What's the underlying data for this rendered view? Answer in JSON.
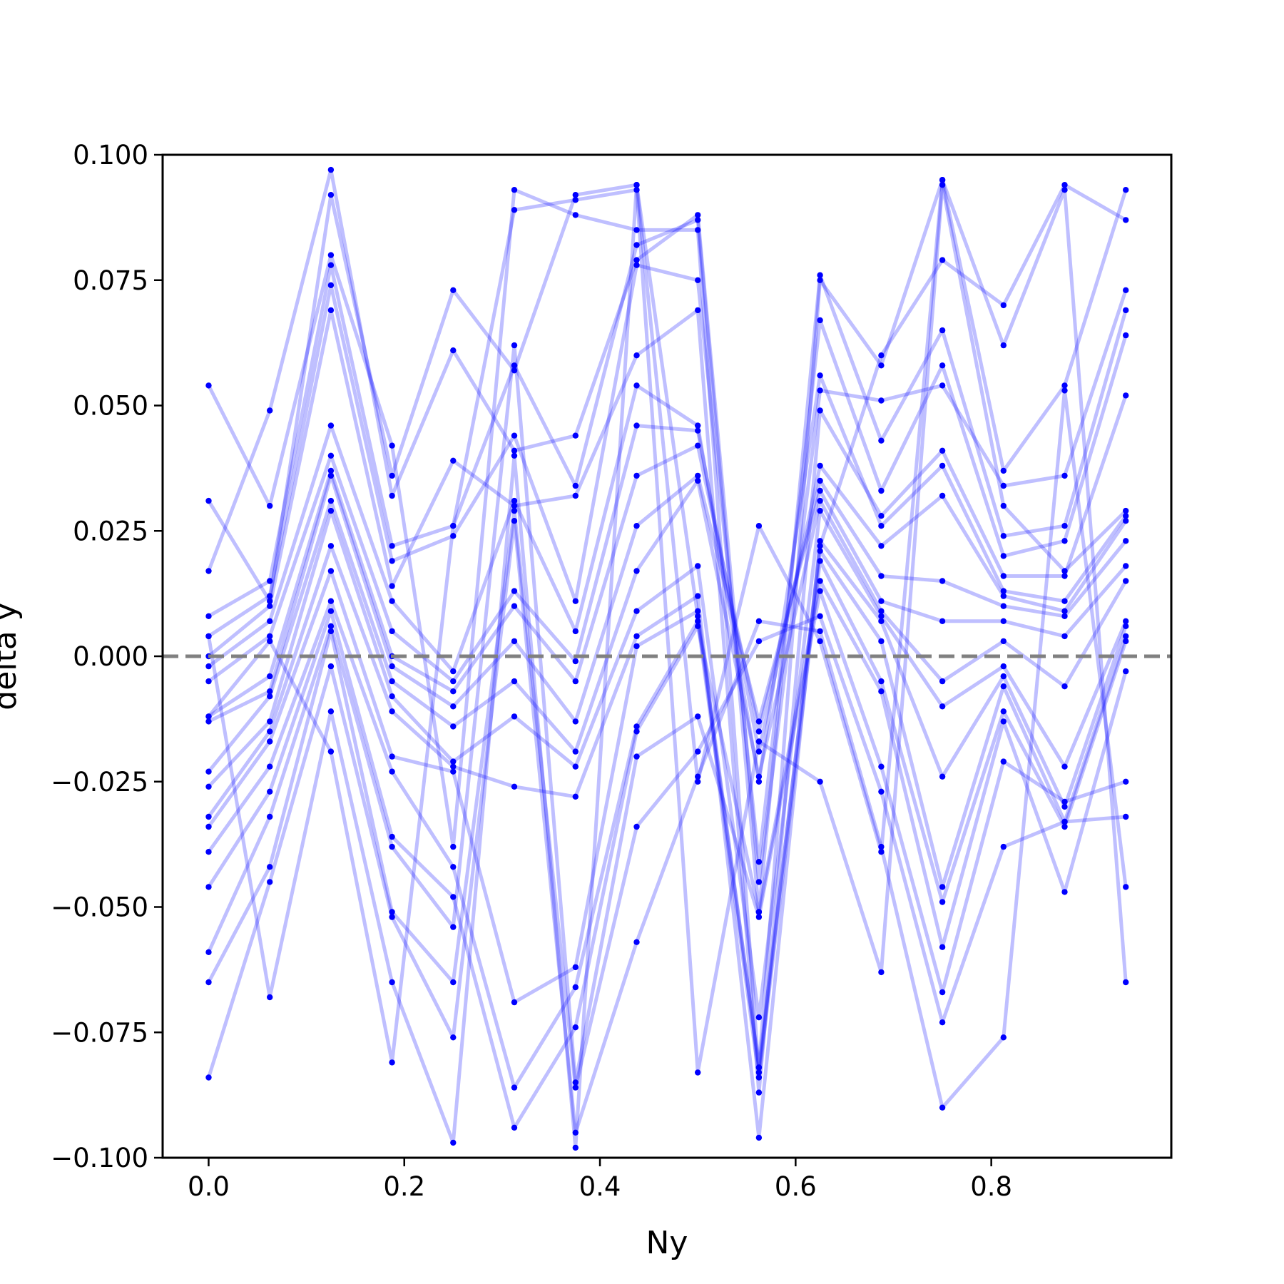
{
  "chart_data": {
    "type": "line",
    "xlabel": "Ny",
    "ylabel": "delta y",
    "xlim": [
      -0.047,
      0.984
    ],
    "ylim": [
      -0.1,
      0.1
    ],
    "x": [
      0.0,
      0.0625,
      0.125,
      0.1875,
      0.25,
      0.3125,
      0.375,
      0.4375,
      0.5,
      0.5625,
      0.625,
      0.6875,
      0.75,
      0.8125,
      0.875,
      0.9375
    ],
    "xticks": [
      "0.0",
      "0.2",
      "0.4",
      "0.6",
      "0.8"
    ],
    "xtick_values": [
      0.0,
      0.2,
      0.4,
      0.6,
      0.8
    ],
    "yticks": [
      "−0.100",
      "−0.075",
      "−0.050",
      "−0.025",
      "0.000",
      "0.025",
      "0.050",
      "0.075",
      "0.100"
    ],
    "ytick_values": [
      -0.1,
      -0.075,
      -0.05,
      -0.025,
      0.0,
      0.025,
      0.05,
      0.075,
      0.1
    ],
    "reference_line": {
      "y": 0.0,
      "style": "dashed",
      "color": "#808080"
    },
    "line_color": "#0000ff",
    "line_alpha": 0.25,
    "marker_color": "#0000ff",
    "grid": false,
    "series": [
      {
        "values": [
          0.054,
          0.03,
          0.08,
          0.042,
          -0.038,
          0.093,
          0.088,
          0.085,
          0.085,
          -0.083,
          0.022,
          0.06,
          0.079,
          0.07,
          0.094,
          0.087
        ]
      },
      {
        "values": [
          0.031,
          0.011,
          0.092,
          0.036,
          0.073,
          0.057,
          0.092,
          0.094,
          0.008,
          -0.082,
          0.075,
          0.058,
          0.095,
          0.037,
          0.054,
          0.093
        ]
      },
      {
        "values": [
          0.017,
          0.049,
          0.097,
          0.032,
          0.061,
          0.041,
          0.044,
          0.079,
          0.088,
          -0.045,
          0.053,
          0.051,
          0.054,
          0.034,
          0.036,
          0.073
        ]
      },
      {
        "values": [
          0.008,
          0.015,
          0.078,
          0.022,
          0.026,
          0.058,
          0.034,
          0.082,
          0.087,
          -0.051,
          0.076,
          0.043,
          0.065,
          0.024,
          0.026,
          0.069
        ]
      },
      {
        "values": [
          0.004,
          0.012,
          0.074,
          0.019,
          0.024,
          0.044,
          0.011,
          0.078,
          0.075,
          -0.041,
          0.067,
          0.033,
          0.058,
          0.02,
          0.023,
          0.064
        ]
      },
      {
        "values": [
          0.0,
          0.01,
          0.069,
          0.014,
          0.039,
          0.03,
          0.032,
          0.06,
          0.069,
          -0.087,
          0.049,
          0.028,
          0.041,
          0.016,
          0.016,
          0.052
        ]
      },
      {
        "values": [
          -0.002,
          0.007,
          0.046,
          0.011,
          -0.003,
          0.031,
          0.005,
          0.054,
          0.046,
          -0.025,
          0.056,
          0.026,
          0.038,
          0.013,
          0.011,
          0.028
        ]
      },
      {
        "values": [
          -0.005,
          0.004,
          0.04,
          0.005,
          -0.005,
          0.013,
          -0.001,
          0.046,
          0.045,
          -0.019,
          0.038,
          0.022,
          0.032,
          0.012,
          0.009,
          0.027
        ]
      },
      {
        "values": [
          -0.012,
          -0.004,
          0.037,
          0.0,
          -0.007,
          0.01,
          -0.005,
          0.036,
          0.042,
          -0.015,
          0.035,
          0.016,
          0.015,
          0.01,
          0.008,
          0.023
        ]
      },
      {
        "values": [
          -0.013,
          -0.007,
          0.036,
          -0.002,
          -0.01,
          0.003,
          -0.013,
          0.026,
          0.036,
          -0.013,
          0.033,
          0.011,
          0.007,
          0.007,
          0.004,
          0.018
        ]
      },
      {
        "values": [
          -0.023,
          -0.008,
          0.031,
          -0.005,
          -0.014,
          -0.005,
          -0.019,
          0.017,
          0.035,
          -0.024,
          0.031,
          0.009,
          -0.005,
          0.003,
          -0.006,
          0.015
        ]
      },
      {
        "values": [
          -0.026,
          -0.013,
          0.029,
          -0.008,
          -0.021,
          -0.012,
          -0.022,
          0.009,
          0.018,
          -0.072,
          0.029,
          0.008,
          -0.01,
          -0.002,
          -0.022,
          0.007
        ]
      },
      {
        "values": [
          -0.032,
          -0.015,
          0.022,
          -0.011,
          -0.022,
          -0.026,
          -0.028,
          0.004,
          0.012,
          -0.096,
          0.023,
          0.007,
          -0.024,
          -0.004,
          -0.03,
          0.006
        ]
      },
      {
        "values": [
          -0.034,
          -0.017,
          0.017,
          -0.02,
          -0.023,
          -0.069,
          -0.062,
          0.002,
          0.009,
          -0.082,
          0.021,
          0.003,
          -0.046,
          -0.006,
          -0.033,
          0.004
        ]
      },
      {
        "values": [
          -0.039,
          -0.022,
          0.011,
          -0.023,
          -0.042,
          -0.086,
          -0.066,
          -0.014,
          0.007,
          -0.084,
          0.019,
          -0.005,
          -0.049,
          -0.011,
          -0.034,
          0.003
        ]
      },
      {
        "values": [
          -0.046,
          -0.027,
          0.009,
          -0.036,
          -0.048,
          -0.094,
          -0.074,
          -0.015,
          0.006,
          -0.051,
          0.015,
          -0.007,
          -0.058,
          -0.013,
          -0.047,
          -0.003
        ]
      },
      {
        "values": [
          -0.059,
          -0.032,
          0.006,
          -0.038,
          -0.054,
          0.062,
          -0.085,
          -0.02,
          -0.012,
          -0.052,
          0.013,
          -0.022,
          -0.067,
          -0.021,
          -0.029,
          -0.025
        ]
      },
      {
        "values": [
          -0.065,
          -0.042,
          0.005,
          -0.051,
          -0.065,
          0.029,
          -0.086,
          -0.034,
          -0.019,
          0.003,
          0.008,
          -0.027,
          -0.073,
          -0.038,
          -0.033,
          -0.032
        ]
      },
      {
        "values": [
          -0.084,
          -0.045,
          -0.002,
          -0.052,
          -0.076,
          0.027,
          -0.095,
          -0.057,
          -0.024,
          0.007,
          0.005,
          -0.038,
          -0.09,
          -0.076,
          0.053,
          -0.046
        ]
      },
      {
        "values": [
          0.004,
          -0.068,
          -0.011,
          -0.065,
          -0.097,
          0.04,
          -0.098,
          0.094,
          -0.025,
          0.026,
          0.003,
          -0.039,
          0.095,
          0.062,
          0.093,
          -0.065
        ]
      },
      {
        "values": [
          -0.012,
          0.003,
          -0.019,
          -0.081,
          0.026,
          0.089,
          0.091,
          0.093,
          -0.083,
          -0.017,
          -0.025,
          -0.063,
          0.094,
          0.03,
          0.017,
          0.029
        ]
      }
    ]
  }
}
